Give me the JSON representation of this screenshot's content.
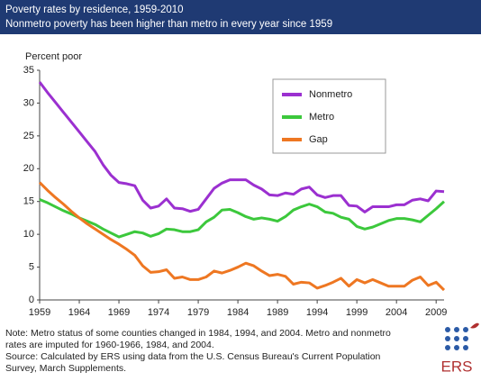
{
  "chart_data": {
    "type": "line",
    "title": "Poverty rates by residence, 1959-2010",
    "subtitle": "Nonmetro poverty has been higher than metro in every year since 1959",
    "y_label": "Percent poor",
    "x": [
      1959,
      1960,
      1961,
      1962,
      1963,
      1964,
      1965,
      1966,
      1967,
      1968,
      1969,
      1970,
      1971,
      1972,
      1973,
      1974,
      1975,
      1976,
      1977,
      1978,
      1979,
      1980,
      1981,
      1982,
      1983,
      1984,
      1985,
      1986,
      1987,
      1988,
      1989,
      1990,
      1991,
      1992,
      1993,
      1994,
      1995,
      1996,
      1997,
      1998,
      1999,
      2000,
      2001,
      2002,
      2003,
      2004,
      2005,
      2006,
      2007,
      2008,
      2009,
      2010
    ],
    "series": [
      {
        "name": "Nonmetro",
        "color": "#9b30d0",
        "values": [
          33.2,
          31.6,
          30.1,
          28.6,
          27.1,
          25.6,
          24.1,
          22.6,
          20.6,
          19.0,
          17.9,
          17.7,
          17.4,
          15.2,
          14.0,
          14.3,
          15.4,
          14.0,
          13.9,
          13.5,
          13.8,
          15.4,
          17.0,
          17.8,
          18.3,
          18.3,
          18.3,
          17.5,
          16.9,
          16.0,
          15.9,
          16.3,
          16.1,
          16.9,
          17.2,
          16.0,
          15.6,
          15.9,
          15.9,
          14.4,
          14.3,
          13.4,
          14.2,
          14.2,
          14.2,
          14.5,
          14.5,
          15.2,
          15.4,
          15.1,
          16.6,
          16.5
        ]
      },
      {
        "name": "Metro",
        "color": "#3cc83c",
        "values": [
          15.3,
          14.8,
          14.2,
          13.6,
          13.1,
          12.5,
          12.0,
          11.5,
          10.8,
          10.2,
          9.6,
          10.0,
          10.4,
          10.2,
          9.7,
          10.1,
          10.8,
          10.7,
          10.4,
          10.4,
          10.7,
          11.9,
          12.6,
          13.7,
          13.8,
          13.3,
          12.7,
          12.3,
          12.5,
          12.3,
          12.0,
          12.7,
          13.7,
          14.2,
          14.6,
          14.2,
          13.4,
          13.2,
          12.6,
          12.3,
          11.2,
          10.8,
          11.1,
          11.6,
          12.1,
          12.4,
          12.4,
          12.2,
          11.9,
          12.9,
          13.9,
          15.0
        ]
      },
      {
        "name": "Gap",
        "color": "#ee7722",
        "values": [
          17.9,
          16.7,
          15.6,
          14.6,
          13.5,
          12.5,
          11.6,
          10.8,
          10.0,
          9.2,
          8.5,
          7.7,
          6.8,
          5.2,
          4.2,
          4.3,
          4.6,
          3.3,
          3.5,
          3.1,
          3.1,
          3.5,
          4.4,
          4.1,
          4.5,
          5.0,
          5.6,
          5.2,
          4.4,
          3.7,
          3.9,
          3.6,
          2.4,
          2.7,
          2.6,
          1.8,
          2.2,
          2.7,
          3.3,
          2.1,
          3.1,
          2.6,
          3.1,
          2.6,
          2.1,
          2.1,
          2.1,
          3.0,
          3.5,
          2.2,
          2.7,
          1.5
        ]
      }
    ],
    "xlim": [
      1959,
      2010
    ],
    "xticks": [
      1959,
      1964,
      1969,
      1974,
      1979,
      1984,
      1989,
      1994,
      1999,
      2004,
      2009
    ],
    "ylim": [
      0,
      35
    ],
    "yticks": [
      0,
      5,
      10,
      15,
      20,
      25,
      30,
      35
    ],
    "grid": false,
    "legend": "top-right",
    "notes": [
      "Note: Metro status of some counties changed in 1984, 1994, and 2004. Metro and nonmetro rates are imputed for 1960-1966, 1984, and 2004.",
      "Source: Calculated by ERS using data from the U.S. Census Bureau's Current Population Survey, March Supplements."
    ],
    "logo": "ERS"
  }
}
